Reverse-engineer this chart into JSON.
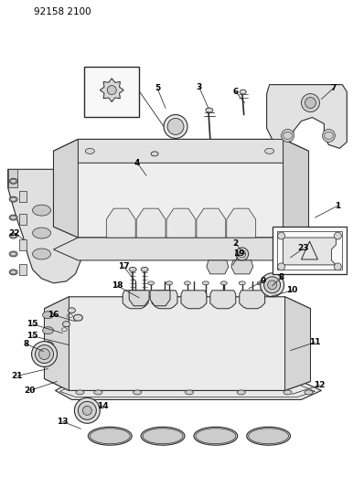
{
  "title": "92158 2100",
  "bg": "#ffffff",
  "lc": "#2a2a2a",
  "figsize": [
    3.86,
    5.33
  ],
  "dpi": 100,
  "callouts": [
    [
      "1",
      370,
      225,
      345,
      238,
      "right"
    ],
    [
      "2",
      258,
      267,
      268,
      278,
      "left"
    ],
    [
      "3",
      218,
      95,
      228,
      118,
      "left"
    ],
    [
      "4",
      150,
      178,
      160,
      192,
      "left"
    ],
    [
      "5",
      172,
      96,
      181,
      118,
      "left"
    ],
    [
      "6",
      258,
      100,
      268,
      112,
      "left"
    ],
    [
      "7",
      365,
      96,
      352,
      108,
      "right"
    ],
    [
      "8",
      28,
      377,
      47,
      385,
      "left"
    ],
    [
      "8",
      308,
      304,
      298,
      313,
      "right"
    ],
    [
      "9",
      288,
      308,
      272,
      316,
      "right"
    ],
    [
      "10",
      320,
      318,
      295,
      325,
      "right"
    ],
    [
      "11",
      345,
      375,
      318,
      384,
      "right"
    ],
    [
      "12",
      350,
      422,
      320,
      432,
      "right"
    ],
    [
      "13",
      68,
      462,
      88,
      470,
      "left"
    ],
    [
      "14",
      112,
      445,
      107,
      445,
      "right"
    ],
    [
      "15",
      35,
      355,
      68,
      365,
      "left"
    ],
    [
      "15",
      35,
      368,
      75,
      378,
      "left"
    ],
    [
      "16",
      58,
      345,
      82,
      352,
      "left"
    ],
    [
      "17",
      135,
      292,
      148,
      308,
      "left"
    ],
    [
      "18",
      128,
      313,
      152,
      326,
      "left"
    ],
    [
      "19",
      262,
      278,
      255,
      290,
      "right"
    ],
    [
      "20",
      32,
      428,
      62,
      418,
      "left"
    ],
    [
      "21",
      18,
      412,
      52,
      404,
      "left"
    ],
    [
      "22",
      15,
      255,
      25,
      262,
      "left"
    ],
    [
      "23",
      332,
      272,
      318,
      282,
      "right"
    ]
  ]
}
